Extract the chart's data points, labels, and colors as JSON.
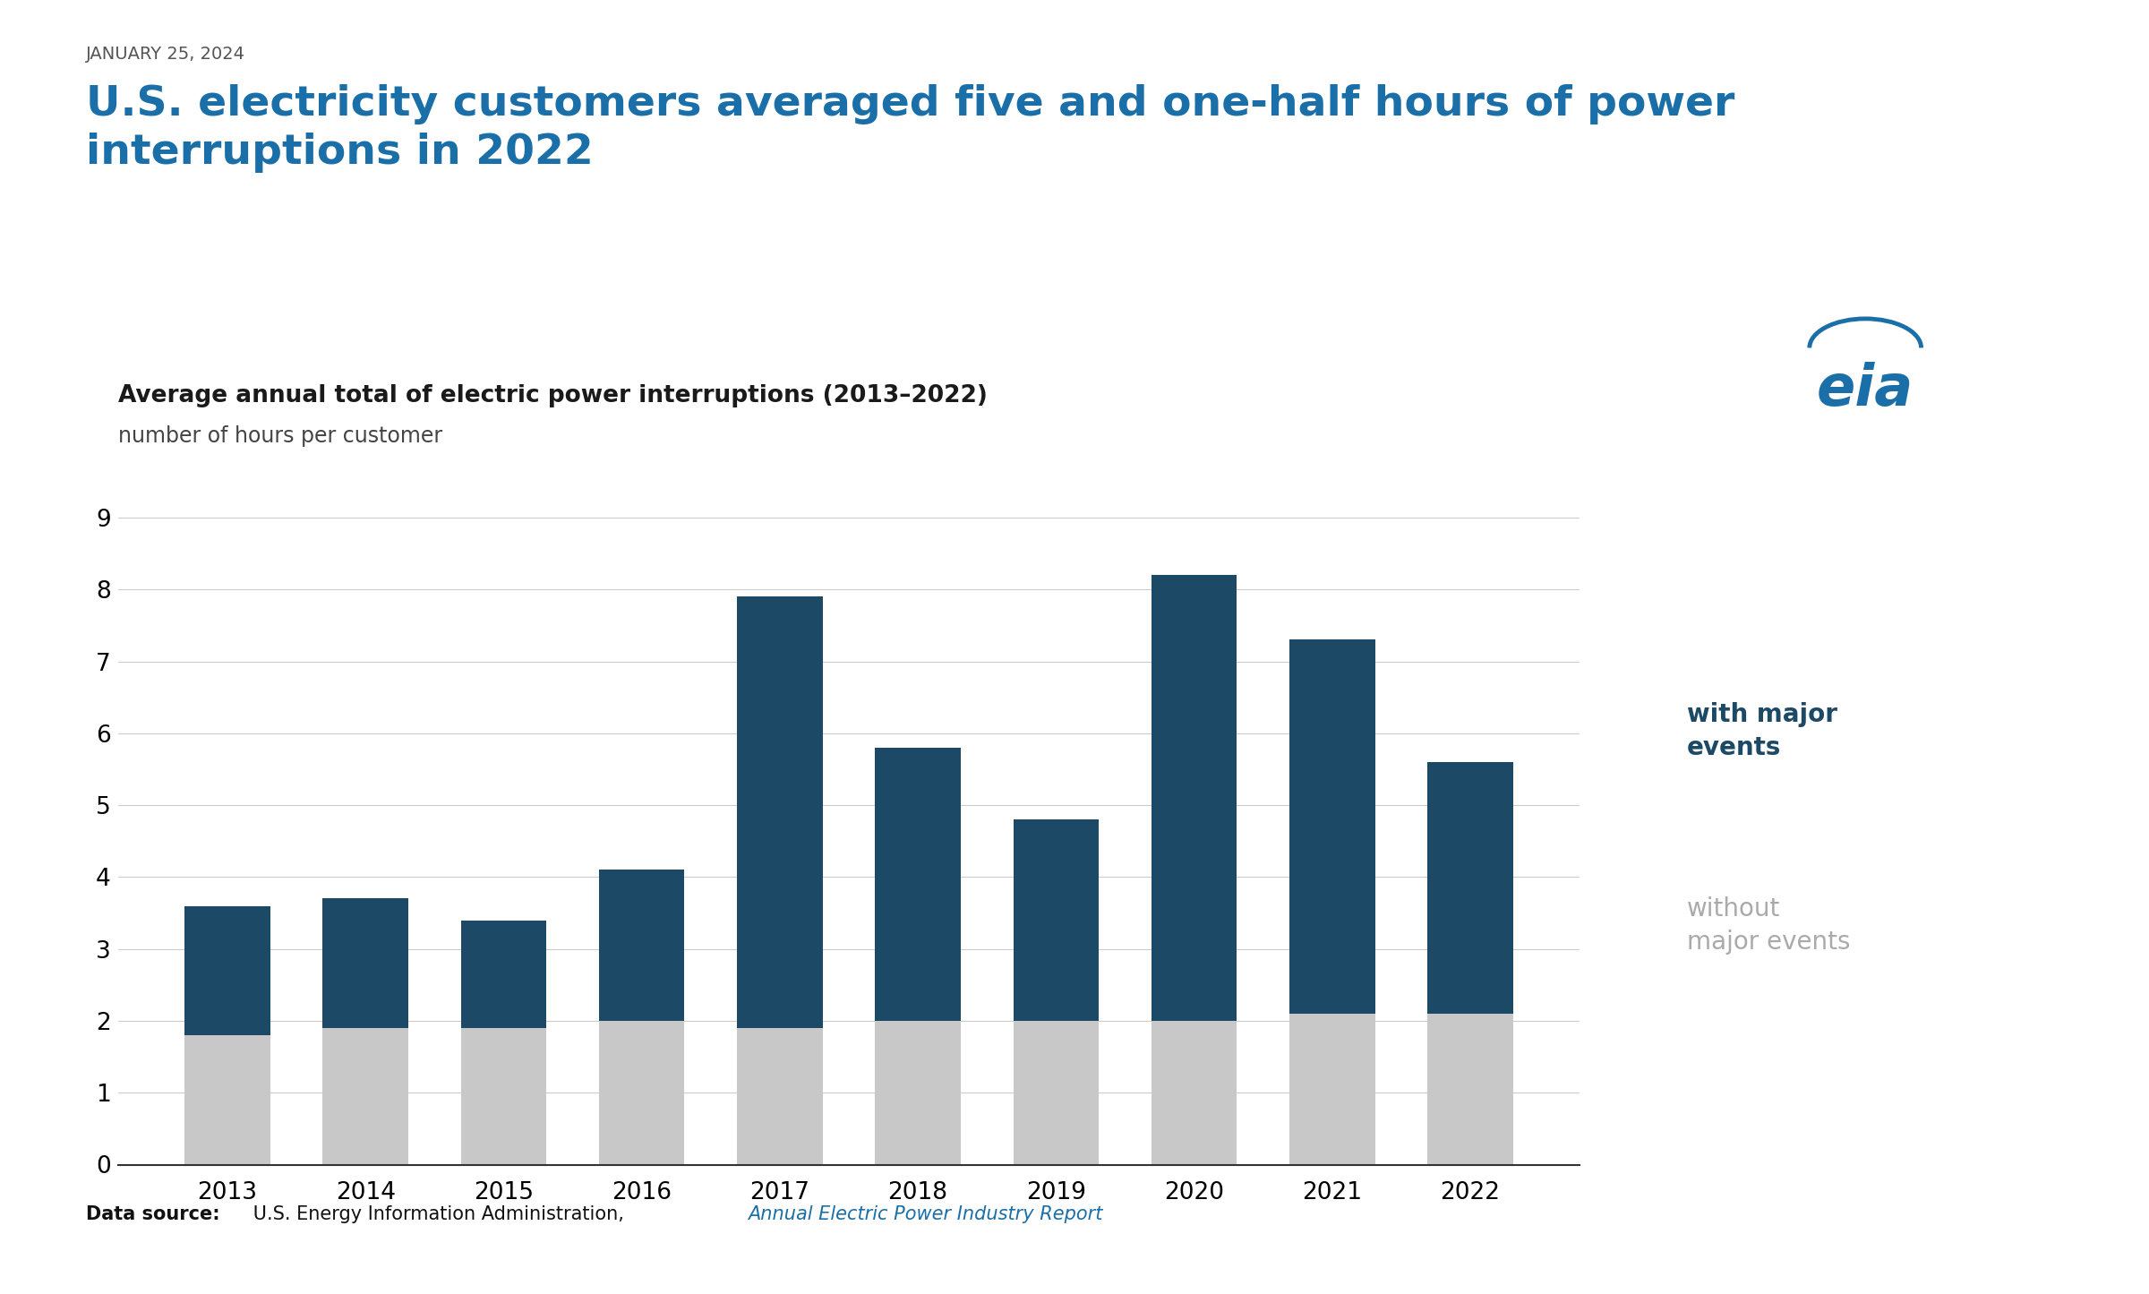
{
  "years": [
    "2013",
    "2014",
    "2015",
    "2016",
    "2017",
    "2018",
    "2019",
    "2020",
    "2021",
    "2022"
  ],
  "with_major": [
    3.6,
    3.7,
    3.4,
    4.1,
    7.9,
    5.8,
    4.8,
    8.2,
    7.3,
    5.6
  ],
  "without_major": [
    1.8,
    1.9,
    1.9,
    2.0,
    1.9,
    2.0,
    2.0,
    2.0,
    2.1,
    2.1
  ],
  "bar_color_dark": "#1c4966",
  "bar_color_light": "#c8c8c8",
  "title_date": "JANUARY 25, 2024",
  "title_main": "U.S. electricity customers averaged five and one-half hours of power\ninterruptions in 2022",
  "chart_title": "Average annual total of electric power interruptions (2013–2022)",
  "chart_subtitle": "number of hours per customer",
  "legend_label_dark": "with major\nevents",
  "legend_label_light": "without\nmajor events",
  "data_source_bold": "Data source:",
  "data_source_normal": " U.S. Energy Information Administration, ",
  "data_source_link": "Annual Electric Power Industry Report",
  "title_color": "#1a6fa8",
  "date_color": "#555555",
  "legend_dark_color": "#1c4966",
  "legend_light_color": "#aaaaaa",
  "eia_color": "#1a6fa8",
  "background_color": "#ffffff",
  "grid_color": "#cccccc",
  "spine_color": "#333333"
}
